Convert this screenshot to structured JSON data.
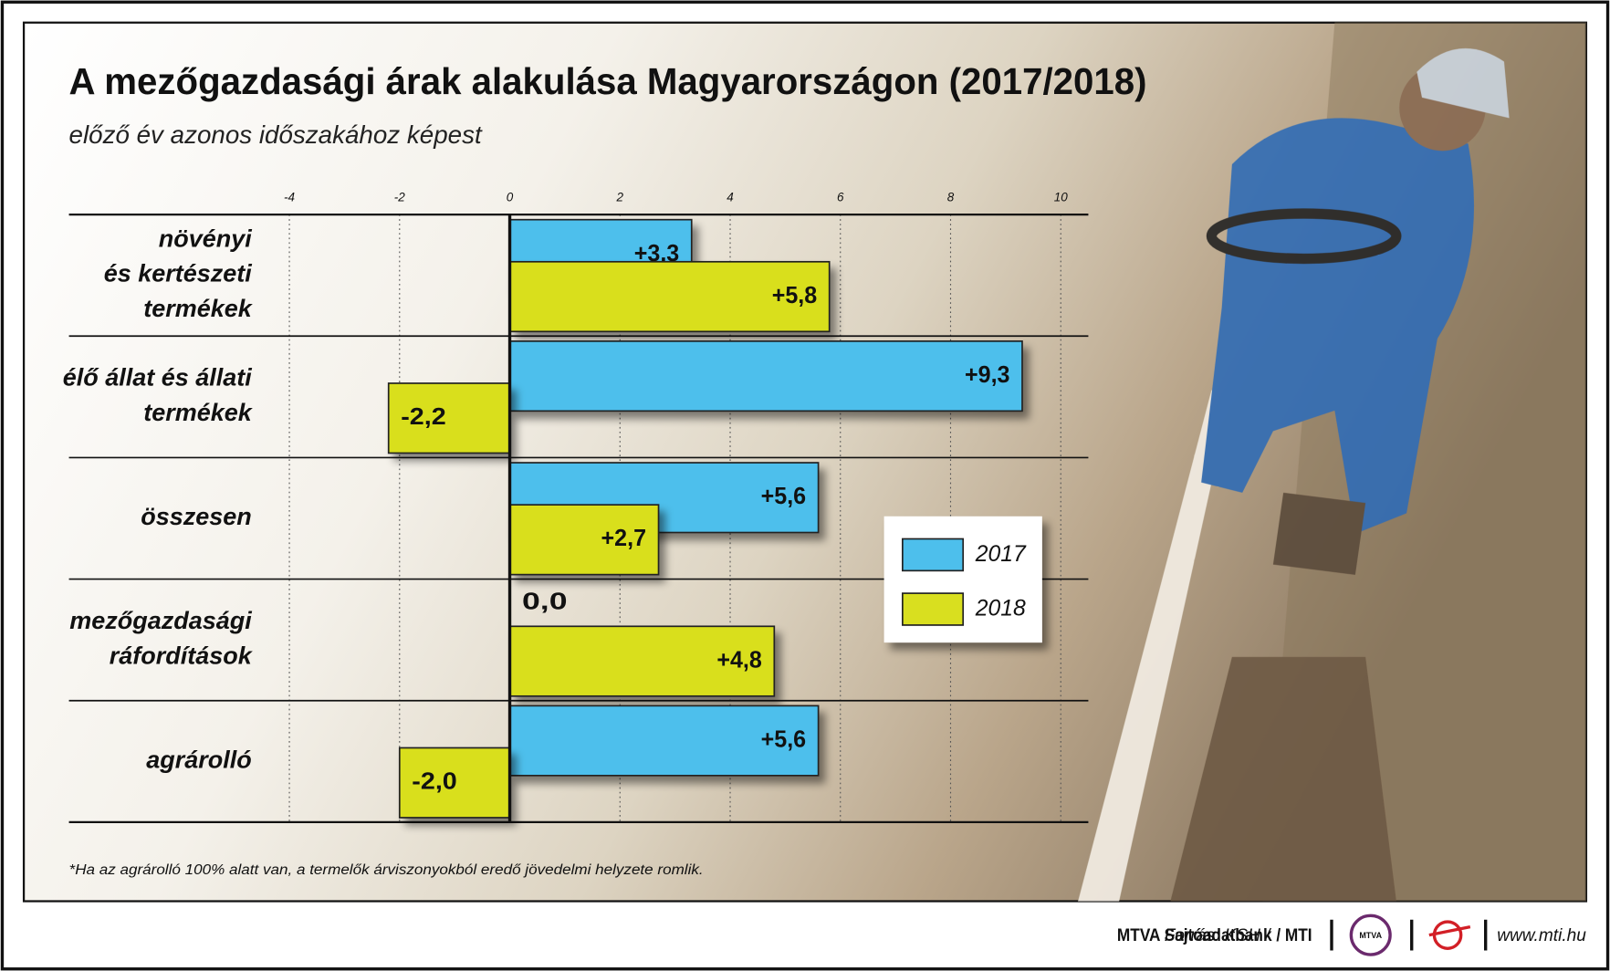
{
  "chart_data": {
    "type": "hbar",
    "title": "A mezőgazdasági árak alakulása Magyarországon (2017/2018)",
    "subtitle": "előző év azonos időszakához képest",
    "categories": [
      "növényi\nés kertészeti\ntermékek",
      "élő állat és állati\ntermékek",
      "összesen",
      "mezőgazdasági\nráfordítások",
      "agrárolló"
    ],
    "series": [
      {
        "name": "2017",
        "color": "#4dbfec",
        "values": [
          3.3,
          9.3,
          5.6,
          0.0,
          5.6
        ],
        "value_labels": [
          "+3,3",
          "+9,3",
          "+5,6",
          "0,0",
          "+5,6"
        ]
      },
      {
        "name": "2018",
        "color": "#d9df1f",
        "values": [
          5.8,
          -2.2,
          2.7,
          4.8,
          -2.0
        ],
        "value_labels": [
          "+5,8",
          "-2,2",
          "+2,7",
          "+4,8",
          "-2,0"
        ]
      }
    ],
    "xlim": [
      -8,
      10.5
    ],
    "xticks": [
      -4,
      -2,
      0,
      2,
      4,
      6,
      8,
      10
    ],
    "grid": true,
    "note": "*Ha az agrárolló 100% alatt van, a termelők árviszonyokból eredő jövedelmi helyzete romlik."
  },
  "footer": {
    "source": "Forrás: KSH /",
    "agency": "MTVA Sajtóadatbank / MTI",
    "logo": "MTVA",
    "url": "www.mti.hu"
  }
}
